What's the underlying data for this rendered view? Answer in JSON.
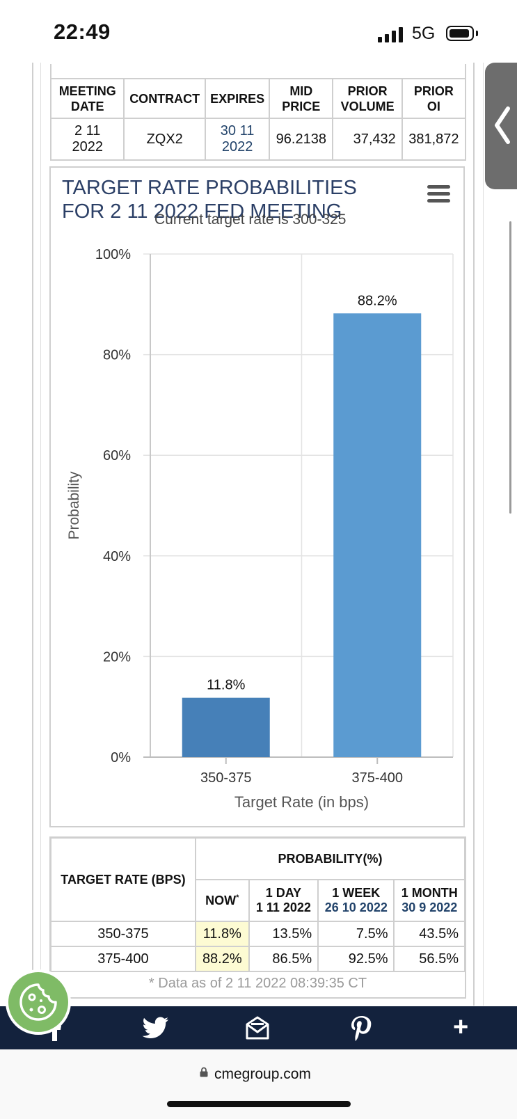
{
  "status_bar": {
    "time": "22:49",
    "network": "5G"
  },
  "contract_table": {
    "headers": {
      "meeting_date": [
        "MEETING",
        "DATE"
      ],
      "contract": "CONTRACT",
      "expires": "EXPIRES",
      "mid_price": [
        "MID",
        "PRICE"
      ],
      "prior_volume": [
        "PRIOR",
        "VOLUME"
      ],
      "prior_oi": [
        "PRIOR",
        "OI"
      ]
    },
    "row": {
      "meeting_date": [
        "2 11",
        "2022"
      ],
      "contract": "ZQX2",
      "expires": [
        "30 11",
        "2022"
      ],
      "mid_price": "96.2138",
      "prior_volume": "37,432",
      "prior_oi": "381,872"
    }
  },
  "chart": {
    "title_line1": "TARGET RATE PROBABILITIES",
    "title_line2": "FOR 2 11 2022 FED MEETING",
    "subtitle": "Current target rate is 300-325",
    "menu_icon": "hamburger-menu-icon"
  },
  "chart_data": {
    "type": "bar",
    "title": "TARGET RATE PROBABILITIES FOR 2 11 2022 FED MEETING",
    "subtitle": "Current target rate is 300-325",
    "categories": [
      "350-375",
      "375-400"
    ],
    "values": [
      11.8,
      88.2
    ],
    "data_labels": [
      "11.8%",
      "88.2%"
    ],
    "xlabel": "Target Rate (in bps)",
    "ylabel": "Probability",
    "ylim": [
      0,
      100
    ],
    "yticks": [
      "0%",
      "20%",
      "40%",
      "60%",
      "80%",
      "100%"
    ],
    "colors": [
      "#4680b8",
      "#5b9bd1"
    ],
    "grid": true
  },
  "prob_table": {
    "target_rate_header": "TARGET RATE (BPS)",
    "probability_header": "PROBABILITY(%)",
    "now_label": "NOW",
    "now_marker": "*",
    "one_day": {
      "label": "1 DAY",
      "date": "1 11 2022"
    },
    "one_week": {
      "label": "1 WEEK",
      "date": "26 10 2022"
    },
    "one_month": {
      "label": "1 MONTH",
      "date": "30 9 2022"
    },
    "rows": [
      {
        "rate": "350-375",
        "now": "11.8%",
        "day": "13.5%",
        "week": "7.5%",
        "month": "43.5%"
      },
      {
        "rate": "375-400",
        "now": "88.2%",
        "day": "86.5%",
        "week": "92.5%",
        "month": "56.5%"
      }
    ],
    "footnote": "* Data as of 2 11 2022 08:39:35 CT"
  },
  "share_bar": {
    "icons": [
      "facebook-icon",
      "twitter-icon",
      "email-icon",
      "pinterest-icon",
      "plus-icon"
    ],
    "plus": "+"
  },
  "url_bar": {
    "url": "cmegroup.com"
  }
}
